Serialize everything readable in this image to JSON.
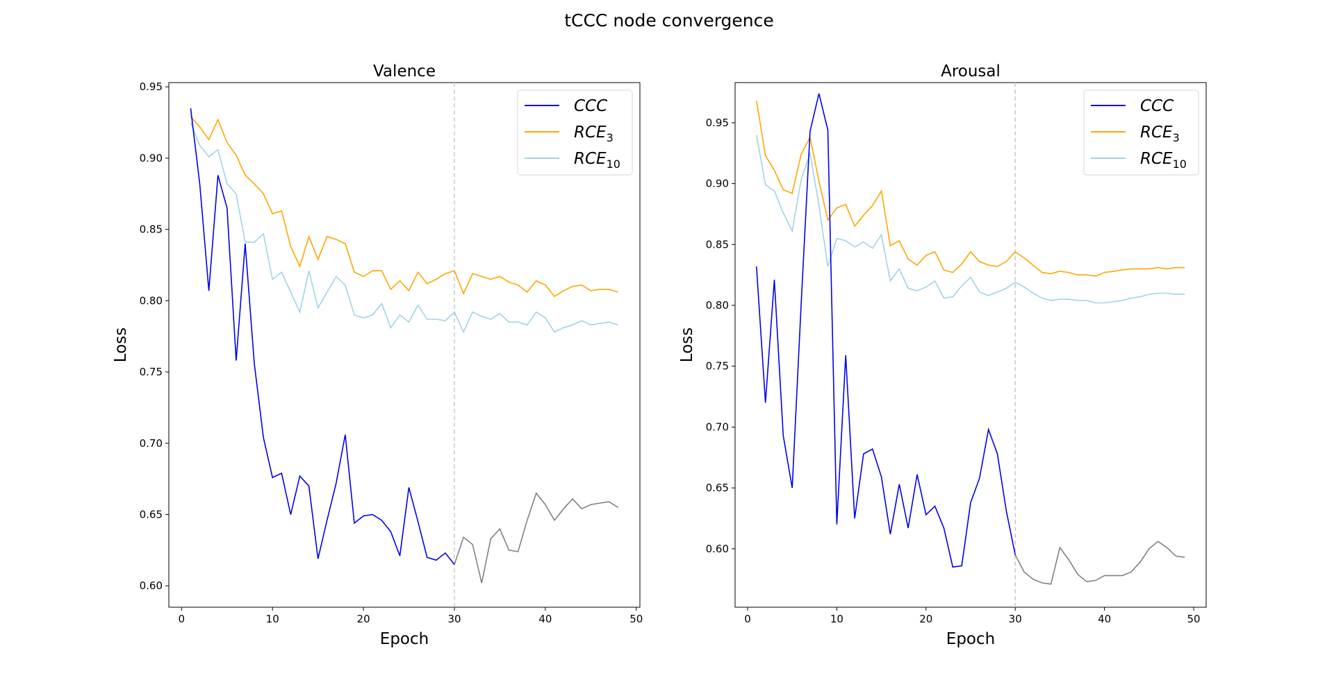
{
  "figure": {
    "title": "tCCC node convergence"
  },
  "colors": {
    "ccc": "#0000ee",
    "rce3": "#ffa500",
    "rce10": "#9fd3e6",
    "after_cutoff": "#808080",
    "vline": "#c8c8c8"
  },
  "chart_data": [
    {
      "type": "line",
      "title": "Valence",
      "xlabel": "Epoch",
      "ylabel": "Loss",
      "xlim": [
        -1.4,
        50.4
      ],
      "ylim": [
        0.585,
        0.953
      ],
      "xticks": [
        0,
        10,
        20,
        30,
        40,
        50
      ],
      "yticks": [
        0.6,
        0.65,
        0.7,
        0.75,
        0.8,
        0.85,
        0.9,
        0.95
      ],
      "cutoff_epoch": 30,
      "legend": {
        "placement": "top-right",
        "entries": [
          {
            "base": "CCC",
            "sub": ""
          },
          {
            "base": "RCE",
            "sub": "3"
          },
          {
            "base": "RCE",
            "sub": "10"
          }
        ]
      },
      "x": [
        1,
        2,
        3,
        4,
        5,
        6,
        7,
        8,
        9,
        10,
        11,
        12,
        13,
        14,
        15,
        16,
        17,
        18,
        19,
        20,
        21,
        22,
        23,
        24,
        25,
        26,
        27,
        28,
        29,
        30,
        31,
        32,
        33,
        34,
        35,
        36,
        37,
        38,
        39,
        40,
        41,
        42,
        43,
        44,
        45,
        46,
        47,
        48
      ],
      "series": [
        {
          "name": "CCC",
          "color_key": "ccc",
          "values": [
            0.935,
            0.882,
            0.807,
            0.888,
            0.865,
            0.758,
            0.84,
            0.756,
            0.704,
            0.676,
            0.679,
            0.65,
            0.677,
            0.67,
            0.619,
            0.646,
            0.672,
            0.706,
            0.644,
            0.649,
            0.65,
            0.646,
            0.638,
            0.621,
            0.669,
            0.645,
            0.62,
            0.618,
            0.623,
            0.615,
            0.634,
            0.629,
            0.602,
            0.633,
            0.64,
            0.625,
            0.624,
            0.646,
            0.665,
            0.657,
            0.646,
            0.654,
            0.661,
            0.654,
            0.657,
            0.658,
            0.659,
            0.655
          ]
        },
        {
          "name": "RCE_3",
          "color_key": "rce3",
          "values": [
            0.929,
            0.922,
            0.913,
            0.927,
            0.911,
            0.902,
            0.888,
            0.882,
            0.875,
            0.861,
            0.863,
            0.838,
            0.824,
            0.845,
            0.829,
            0.845,
            0.843,
            0.84,
            0.82,
            0.817,
            0.821,
            0.821,
            0.808,
            0.814,
            0.807,
            0.82,
            0.812,
            0.815,
            0.819,
            0.821,
            0.805,
            0.819,
            0.817,
            0.815,
            0.817,
            0.813,
            0.811,
            0.806,
            0.814,
            0.811,
            0.803,
            0.807,
            0.81,
            0.811,
            0.807,
            0.808,
            0.808,
            0.806
          ]
        },
        {
          "name": "RCE_10",
          "color_key": "rce10",
          "values": [
            0.925,
            0.909,
            0.901,
            0.906,
            0.882,
            0.875,
            0.841,
            0.841,
            0.847,
            0.815,
            0.82,
            0.806,
            0.792,
            0.821,
            0.795,
            0.806,
            0.817,
            0.811,
            0.79,
            0.788,
            0.79,
            0.798,
            0.781,
            0.79,
            0.785,
            0.797,
            0.787,
            0.787,
            0.786,
            0.792,
            0.778,
            0.792,
            0.789,
            0.787,
            0.791,
            0.785,
            0.785,
            0.783,
            0.792,
            0.788,
            0.778,
            0.781,
            0.783,
            0.786,
            0.783,
            0.784,
            0.785,
            0.783
          ]
        }
      ]
    },
    {
      "type": "line",
      "title": "Arousal",
      "xlabel": "Epoch",
      "ylabel": "Loss",
      "xlim": [
        -1.4,
        51.4
      ],
      "ylim": [
        0.552,
        0.983
      ],
      "xticks": [
        0,
        10,
        20,
        30,
        40,
        50
      ],
      "yticks": [
        0.6,
        0.65,
        0.7,
        0.75,
        0.8,
        0.85,
        0.9,
        0.95
      ],
      "cutoff_epoch": 30,
      "legend": {
        "placement": "top-right",
        "entries": [
          {
            "base": "CCC",
            "sub": ""
          },
          {
            "base": "RCE",
            "sub": "3"
          },
          {
            "base": "RCE",
            "sub": "10"
          }
        ]
      },
      "x": [
        1,
        2,
        3,
        4,
        5,
        6,
        7,
        8,
        9,
        10,
        11,
        12,
        13,
        14,
        15,
        16,
        17,
        18,
        19,
        20,
        21,
        22,
        23,
        24,
        25,
        26,
        27,
        28,
        29,
        30,
        31,
        32,
        33,
        34,
        35,
        36,
        37,
        38,
        39,
        40,
        41,
        42,
        43,
        44,
        45,
        46,
        47,
        48,
        49
      ],
      "series": [
        {
          "name": "CCC",
          "color_key": "ccc",
          "values": [
            0.832,
            0.72,
            0.821,
            0.693,
            0.65,
            0.8,
            0.943,
            0.974,
            0.944,
            0.62,
            0.759,
            0.625,
            0.678,
            0.682,
            0.659,
            0.612,
            0.653,
            0.617,
            0.661,
            0.628,
            0.635,
            0.617,
            0.585,
            0.586,
            0.638,
            0.658,
            0.698,
            0.678,
            0.631,
            0.595,
            0.581,
            0.575,
            0.572,
            0.571,
            0.601,
            0.591,
            0.579,
            0.573,
            0.574,
            0.578,
            0.578,
            0.578,
            0.581,
            0.589,
            0.6,
            0.606,
            0.601,
            0.594,
            0.593
          ]
        },
        {
          "name": "RCE_3",
          "color_key": "rce3",
          "values": [
            0.968,
            0.923,
            0.911,
            0.895,
            0.892,
            0.924,
            0.938,
            0.902,
            0.87,
            0.88,
            0.883,
            0.865,
            0.874,
            0.882,
            0.894,
            0.849,
            0.853,
            0.838,
            0.833,
            0.841,
            0.844,
            0.829,
            0.827,
            0.834,
            0.844,
            0.836,
            0.833,
            0.832,
            0.836,
            0.844,
            0.839,
            0.833,
            0.827,
            0.826,
            0.828,
            0.827,
            0.825,
            0.825,
            0.824,
            0.827,
            0.828,
            0.829,
            0.83,
            0.83,
            0.83,
            0.831,
            0.83,
            0.831,
            0.831
          ]
        },
        {
          "name": "RCE_10",
          "color_key": "rce10",
          "values": [
            0.94,
            0.899,
            0.894,
            0.876,
            0.861,
            0.903,
            0.925,
            0.882,
            0.832,
            0.855,
            0.853,
            0.848,
            0.852,
            0.847,
            0.858,
            0.82,
            0.83,
            0.814,
            0.812,
            0.815,
            0.82,
            0.806,
            0.807,
            0.816,
            0.823,
            0.811,
            0.808,
            0.811,
            0.814,
            0.819,
            0.815,
            0.81,
            0.806,
            0.804,
            0.805,
            0.805,
            0.804,
            0.804,
            0.802,
            0.802,
            0.803,
            0.804,
            0.806,
            0.807,
            0.809,
            0.81,
            0.81,
            0.809,
            0.809
          ]
        }
      ]
    }
  ]
}
